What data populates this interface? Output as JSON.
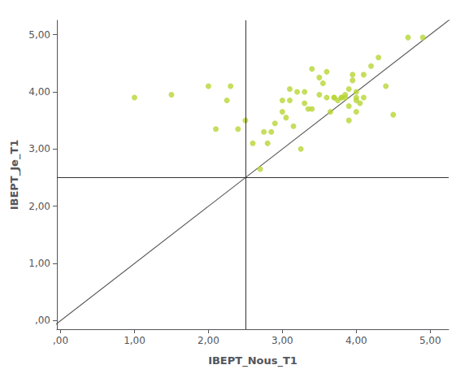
{
  "chart_data": {
    "type": "scatter",
    "xlabel": "IBEPT_Nous_T1",
    "ylabel": "IBEPT_Je_T1",
    "x": [
      1.0,
      1.5,
      2.0,
      2.1,
      2.25,
      2.3,
      2.4,
      2.5,
      2.6,
      2.7,
      2.75,
      2.8,
      2.85,
      2.9,
      3.0,
      3.0,
      3.05,
      3.1,
      3.1,
      3.15,
      3.2,
      3.25,
      3.3,
      3.3,
      3.35,
      3.4,
      3.4,
      3.5,
      3.5,
      3.55,
      3.6,
      3.6,
      3.65,
      3.7,
      3.7,
      3.75,
      3.8,
      3.8,
      3.85,
      3.85,
      3.9,
      3.9,
      3.9,
      3.95,
      3.95,
      4.0,
      4.0,
      4.0,
      4.0,
      4.05,
      4.1,
      4.1,
      4.2,
      4.3,
      4.4,
      4.5,
      4.7,
      4.9
    ],
    "values": [
      3.9,
      3.95,
      4.1,
      3.35,
      3.85,
      4.1,
      3.35,
      3.5,
      3.1,
      2.65,
      3.3,
      3.1,
      3.3,
      3.45,
      3.85,
      3.65,
      3.55,
      3.85,
      4.05,
      3.4,
      4.0,
      3.0,
      3.8,
      4.0,
      3.7,
      3.7,
      4.4,
      3.95,
      4.25,
      4.15,
      3.9,
      4.35,
      3.65,
      3.9,
      3.9,
      3.85,
      3.9,
      3.9,
      3.9,
      3.95,
      3.5,
      3.75,
      4.05,
      4.2,
      4.3,
      3.65,
      3.9,
      4.0,
      3.85,
      3.8,
      3.9,
      4.3,
      4.45,
      4.6,
      4.1,
      3.6,
      4.95,
      4.95
    ],
    "xlim": [
      -0.05,
      5.25
    ],
    "ylim": [
      -0.15,
      5.25
    ],
    "xticks": [
      {
        "value": 0.0,
        "label": ",00"
      },
      {
        "value": 1.0,
        "label": "1,00"
      },
      {
        "value": 2.0,
        "label": "2,00"
      },
      {
        "value": 3.0,
        "label": "3,00"
      },
      {
        "value": 4.0,
        "label": "4,00"
      },
      {
        "value": 5.0,
        "label": "5,00"
      }
    ],
    "yticks": [
      {
        "value": 0.0,
        "label": ",00"
      },
      {
        "value": 1.0,
        "label": "1,00"
      },
      {
        "value": 2.0,
        "label": "2,00"
      },
      {
        "value": 3.0,
        "label": "3,00"
      },
      {
        "value": 4.0,
        "label": "4,00"
      },
      {
        "value": 5.0,
        "label": "5,00"
      }
    ],
    "grid": false,
    "hline": 2.5,
    "vline": 2.5,
    "diagonal": {
      "x": [
        -0.5,
        5.5
      ],
      "y": [
        -0.5,
        5.5
      ]
    }
  }
}
